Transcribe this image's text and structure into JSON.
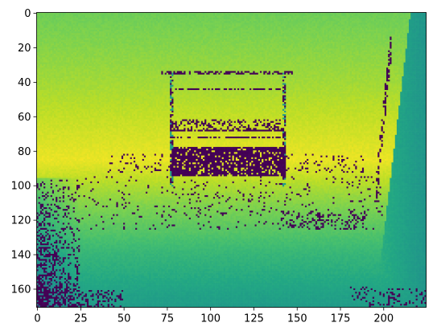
{
  "chart_data": {
    "type": "heatmap",
    "title": "",
    "xlabel": "",
    "ylabel": "",
    "colormap": "viridis",
    "image_shape": [
      171,
      225
    ],
    "xlim": [
      -0.5,
      224.5
    ],
    "ylim": [
      170.5,
      -0.5
    ],
    "x_ticks": [
      0,
      25,
      50,
      75,
      100,
      125,
      150,
      175,
      200
    ],
    "y_ticks": [
      0,
      20,
      40,
      60,
      80,
      100,
      120,
      140,
      160
    ],
    "x_tick_labels": [
      "0",
      "25",
      "50",
      "75",
      "100",
      "125",
      "150",
      "175",
      "200"
    ],
    "y_tick_labels": [
      "0",
      "20",
      "40",
      "60",
      "80",
      "100",
      "120",
      "140",
      "160"
    ],
    "value_range": [
      0,
      1
    ],
    "grid": false,
    "legend": "none",
    "description_regions": {
      "background_gradient_rows": [
        {
          "y": 0,
          "value": 0.78
        },
        {
          "y": 40,
          "value": 0.86
        },
        {
          "y": 85,
          "value": 0.97
        },
        {
          "y": 110,
          "value": 0.82
        },
        {
          "y": 140,
          "value": 0.66
        },
        {
          "y": 170,
          "value": 0.55
        }
      ],
      "dark_block": {
        "x0": 78,
        "x1": 143,
        "y0": 78,
        "y1": 94,
        "value": 0.0
      },
      "frame_outline": {
        "x0": 72,
        "x1": 148,
        "y0": 34,
        "y1": 72
      },
      "inner_frame": {
        "x0": 77,
        "x1": 143,
        "y0": 44,
        "y1": 68
      },
      "right_wall_band": {
        "x_start": 195,
        "value": 0.45
      }
    }
  }
}
